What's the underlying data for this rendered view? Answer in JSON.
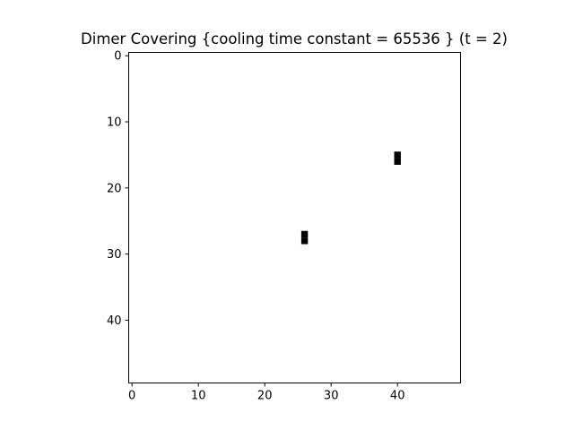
{
  "chart_data": {
    "type": "heatmap",
    "title": "Dimer Covering {cooling time constant = 65536 } (t = 2)",
    "xlabel": "",
    "ylabel": "",
    "grid_size": [
      50,
      50
    ],
    "xlim": [
      -0.5,
      49.5
    ],
    "ylim": [
      49.5,
      -0.5
    ],
    "x_ticks": [
      0,
      10,
      20,
      30,
      40
    ],
    "y_ticks": [
      0,
      10,
      20,
      30,
      40
    ],
    "grid": false,
    "colormap": {
      "empty": "#ffffff",
      "filled": "#000000"
    },
    "filled_cells": [
      {
        "row": 15,
        "col": 40
      },
      {
        "row": 16,
        "col": 40
      },
      {
        "row": 27,
        "col": 26
      },
      {
        "row": 28,
        "col": 26
      }
    ]
  }
}
